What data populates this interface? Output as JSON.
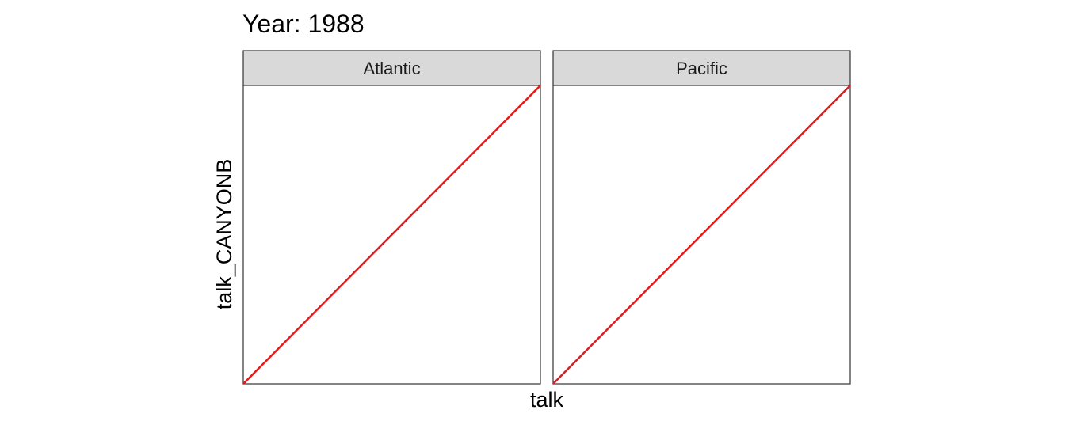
{
  "chart_data": {
    "type": "line",
    "title": "Year: 1988",
    "xlabel": "talk",
    "ylabel": "talk_CANYONB",
    "x_ticks": [],
    "y_ticks": [],
    "grid": false,
    "line_color": "#e31a1c",
    "panels": [
      {
        "label": "Atlantic",
        "series": [
          {
            "x": [
              0,
              1
            ],
            "y": [
              0,
              1
            ]
          }
        ]
      },
      {
        "label": "Pacific",
        "series": [
          {
            "x": [
              0,
              1
            ],
            "y": [
              0,
              1
            ]
          }
        ]
      }
    ],
    "xlim": [
      0,
      1
    ],
    "ylim": [
      0,
      1
    ]
  }
}
